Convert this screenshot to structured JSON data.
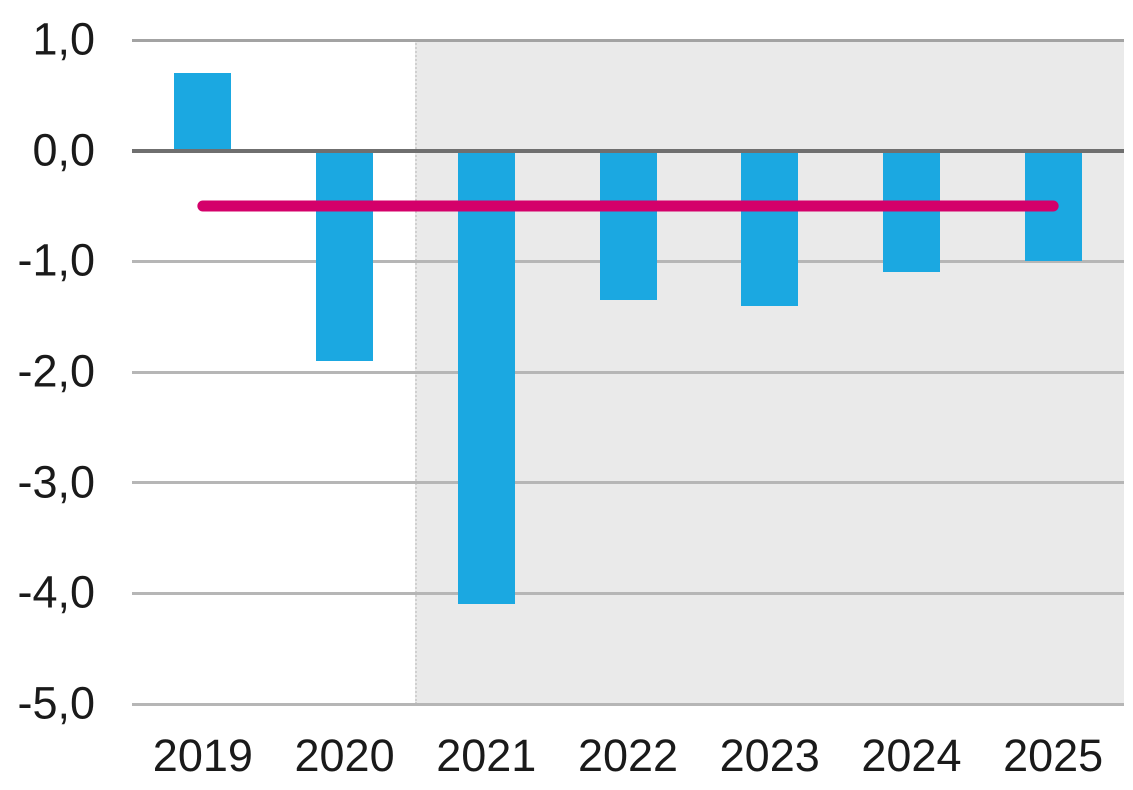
{
  "chart_data": {
    "type": "bar",
    "categories": [
      "2019",
      "2020",
      "2021",
      "2022",
      "2023",
      "2024",
      "2025"
    ],
    "values": [
      0.7,
      -1.9,
      -4.1,
      -1.35,
      -1.4,
      -1.1,
      -1.0
    ],
    "bar_color": "#1ba8e1",
    "y_axis": {
      "min": -5.0,
      "max": 1.0,
      "tick_step": 1.0,
      "tick_values": [
        1.0,
        0.0,
        -1.0,
        -2.0,
        -3.0,
        -4.0,
        -5.0
      ],
      "tick_labels": [
        "1,0",
        "0,0",
        "-1,0",
        "-2,0",
        "-3,0",
        "-4,0",
        "-5,0"
      ],
      "decimal_separator": ","
    },
    "reference_line": {
      "value": -0.5,
      "from_category": "2019",
      "to_category": "2025",
      "color": "#d4006a"
    },
    "shaded_region": {
      "from_boundary_after_category": "2020",
      "to": "plot-right-edge",
      "color": "#eaeaea"
    },
    "grid": {
      "show": true,
      "line_color": "#b6b6b6",
      "top_line_color": "#a3a3a3",
      "zero_line_color": "#6f6f6f"
    },
    "text_color": "#1a1a1a",
    "background_color": "#ffffff"
  }
}
